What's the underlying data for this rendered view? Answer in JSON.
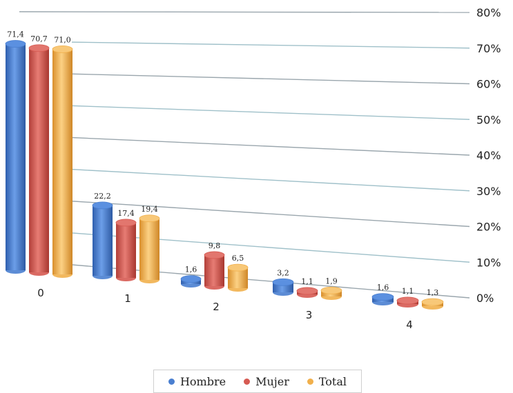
{
  "chart_data": {
    "type": "bar",
    "categories": [
      "0",
      "1",
      "2",
      "3",
      "4"
    ],
    "series": [
      {
        "name": "Hombre",
        "values": [
          71.4,
          22.2,
          1.6,
          3.2,
          1.6
        ],
        "labels": [
          "71,4",
          "22,2",
          "1,6",
          "3,2",
          "1,6"
        ],
        "color": "#4a7fd0"
      },
      {
        "name": "Mujer",
        "values": [
          70.7,
          17.4,
          9.8,
          1.1,
          1.1
        ],
        "labels": [
          "70,7",
          "17,4",
          "9,8",
          "1,1",
          "1,1"
        ],
        "color": "#d65a52"
      },
      {
        "name": "Total",
        "values": [
          71.0,
          19.4,
          6.5,
          1.9,
          1.3
        ],
        "labels": [
          "71,0",
          "19,4",
          "6,5",
          "1,9",
          "1,3"
        ],
        "color": "#f1b04c"
      }
    ],
    "yticks": [
      "0%",
      "10%",
      "20%",
      "30%",
      "40%",
      "50%",
      "60%",
      "70%",
      "80%"
    ],
    "ylim": [
      0,
      80
    ],
    "grid": true,
    "legend_position": "bottom",
    "title": "",
    "xlabel": "",
    "ylabel": ""
  }
}
